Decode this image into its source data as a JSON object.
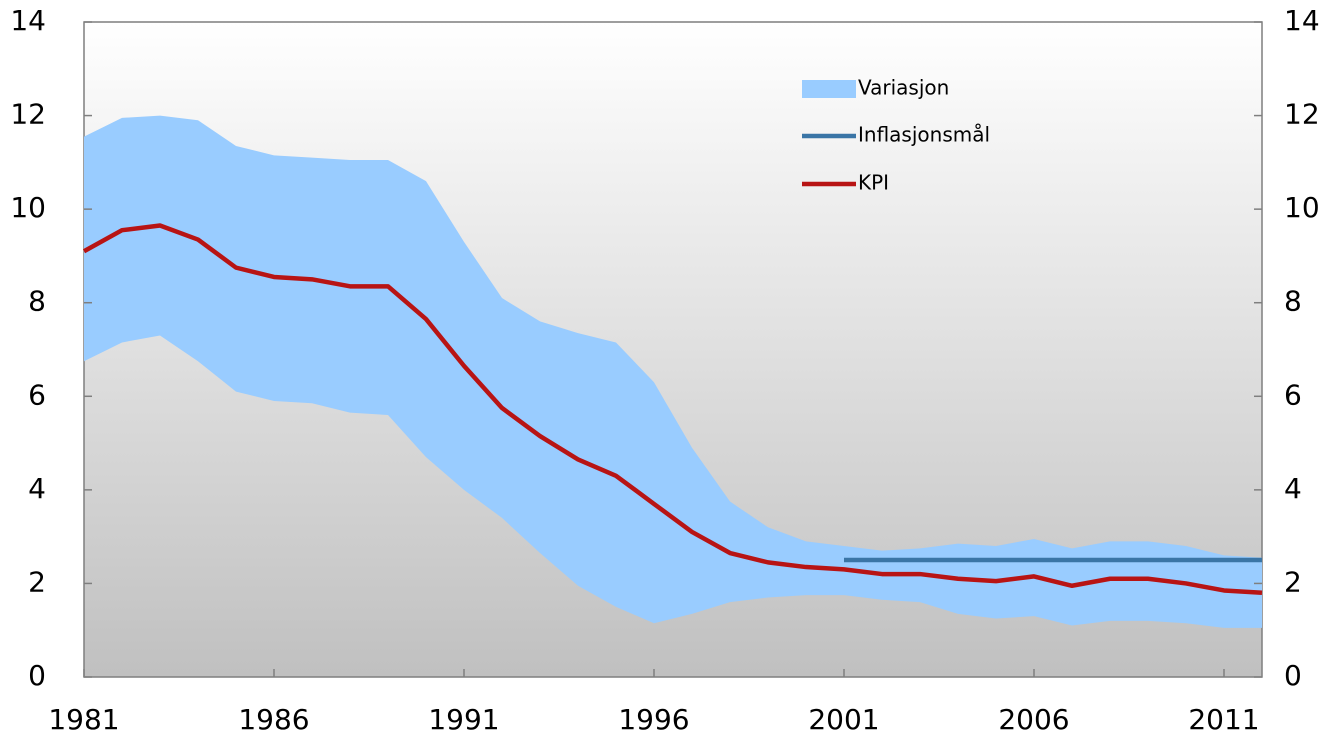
{
  "chart_data": {
    "type": "line",
    "x": [
      1981,
      1982,
      1983,
      1984,
      1985,
      1986,
      1987,
      1988,
      1989,
      1990,
      1991,
      1992,
      1993,
      1994,
      1995,
      1996,
      1997,
      1998,
      1999,
      2000,
      2001,
      2002,
      2003,
      2004,
      2005,
      2006,
      2007,
      2008,
      2009,
      2010,
      2011,
      2012
    ],
    "band": {
      "name": "Variasjon",
      "color": "#99ccff",
      "upper": [
        11.55,
        11.95,
        12.0,
        11.9,
        11.35,
        11.15,
        11.1,
        11.05,
        11.05,
        10.6,
        9.3,
        8.1,
        7.6,
        7.35,
        7.15,
        6.3,
        4.9,
        3.75,
        3.2,
        2.9,
        2.8,
        2.7,
        2.75,
        2.85,
        2.8,
        2.95,
        2.75,
        2.9,
        2.9,
        2.8,
        2.6,
        2.55
      ],
      "lower": [
        6.75,
        7.15,
        7.3,
        6.75,
        6.1,
        5.9,
        5.85,
        5.65,
        5.6,
        4.7,
        4.0,
        3.4,
        2.65,
        1.95,
        1.5,
        1.15,
        1.35,
        1.6,
        1.7,
        1.75,
        1.75,
        1.65,
        1.6,
        1.35,
        1.25,
        1.3,
        1.1,
        1.2,
        1.2,
        1.15,
        1.05,
        1.05
      ]
    },
    "series": [
      {
        "name": "Inflasjonsmål",
        "color": "#3a75a6",
        "values": [
          null,
          null,
          null,
          null,
          null,
          null,
          null,
          null,
          null,
          null,
          null,
          null,
          null,
          null,
          null,
          null,
          null,
          null,
          null,
          null,
          2.5,
          2.5,
          2.5,
          2.5,
          2.5,
          2.5,
          2.5,
          2.5,
          2.5,
          2.5,
          2.5,
          2.5
        ]
      },
      {
        "name": "KPI",
        "color": "#b81414",
        "values": [
          9.1,
          9.55,
          9.65,
          9.35,
          8.75,
          8.55,
          8.5,
          8.35,
          8.35,
          7.65,
          6.65,
          5.75,
          5.15,
          4.65,
          4.3,
          3.7,
          3.1,
          2.65,
          2.45,
          2.35,
          2.3,
          2.2,
          2.2,
          2.1,
          2.05,
          2.15,
          1.95,
          2.1,
          2.1,
          2.0,
          1.85,
          1.8
        ]
      }
    ],
    "xlim": [
      1981,
      2012
    ],
    "xticks": [
      1981,
      1986,
      1991,
      1996,
      2001,
      2006,
      2011
    ],
    "ylim": [
      0,
      14
    ],
    "yticks": [
      0,
      2,
      4,
      6,
      8,
      10,
      12,
      14
    ],
    "y2lim": [
      0,
      14
    ],
    "y2ticks": [
      0,
      2,
      4,
      6,
      8,
      10,
      12,
      14
    ]
  }
}
